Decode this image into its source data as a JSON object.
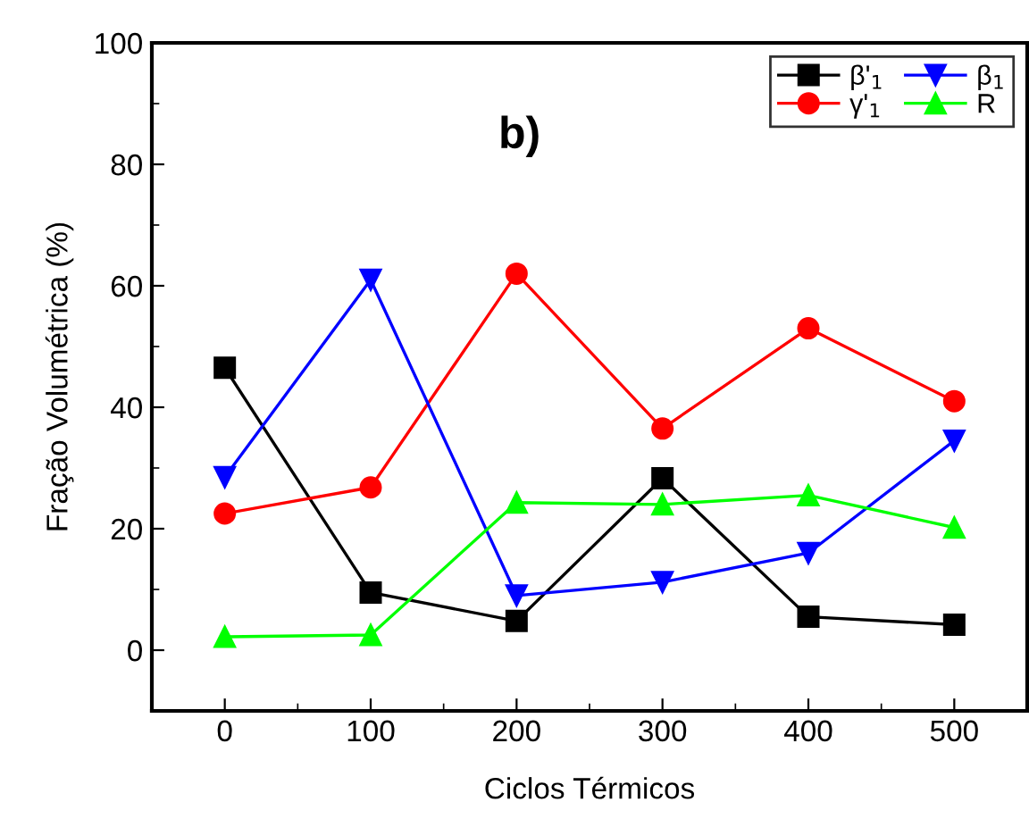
{
  "chart_data": {
    "type": "line",
    "xlabel": "Ciclos Térmicos",
    "ylabel": "Fração Volumétrica (%)",
    "annotations": [
      "b)"
    ],
    "x": [
      0,
      100,
      200,
      300,
      400,
      500
    ],
    "series": [
      {
        "name": "β'$_{1}$",
        "color": "#000000",
        "marker": "square",
        "values": [
          46.5,
          9.5,
          4.8,
          28.3,
          5.5,
          4.2
        ]
      },
      {
        "name": "γ'$_{1}$",
        "color": "#ff0000",
        "marker": "circle",
        "values": [
          22.5,
          26.8,
          62,
          36.5,
          53,
          41
        ]
      },
      {
        "name": "β$_{1}$",
        "color": "#0000ff",
        "marker": "triangle_down",
        "values": [
          28.5,
          61,
          9,
          11.2,
          16,
          34.5
        ]
      },
      {
        "name": "R",
        "color": "#00ff00",
        "marker": "triangle",
        "values": [
          2.2,
          2.5,
          24.3,
          24,
          25.5,
          20.2
        ]
      }
    ],
    "xlim": [
      -50,
      550
    ],
    "xticks": [
      0,
      100,
      200,
      300,
      400,
      500
    ],
    "ylim": [
      -10,
      100
    ],
    "yticks": [
      0,
      20,
      40,
      60,
      80,
      100
    ],
    "legend": "top right",
    "grid": false,
    "line_style": "solid"
  }
}
